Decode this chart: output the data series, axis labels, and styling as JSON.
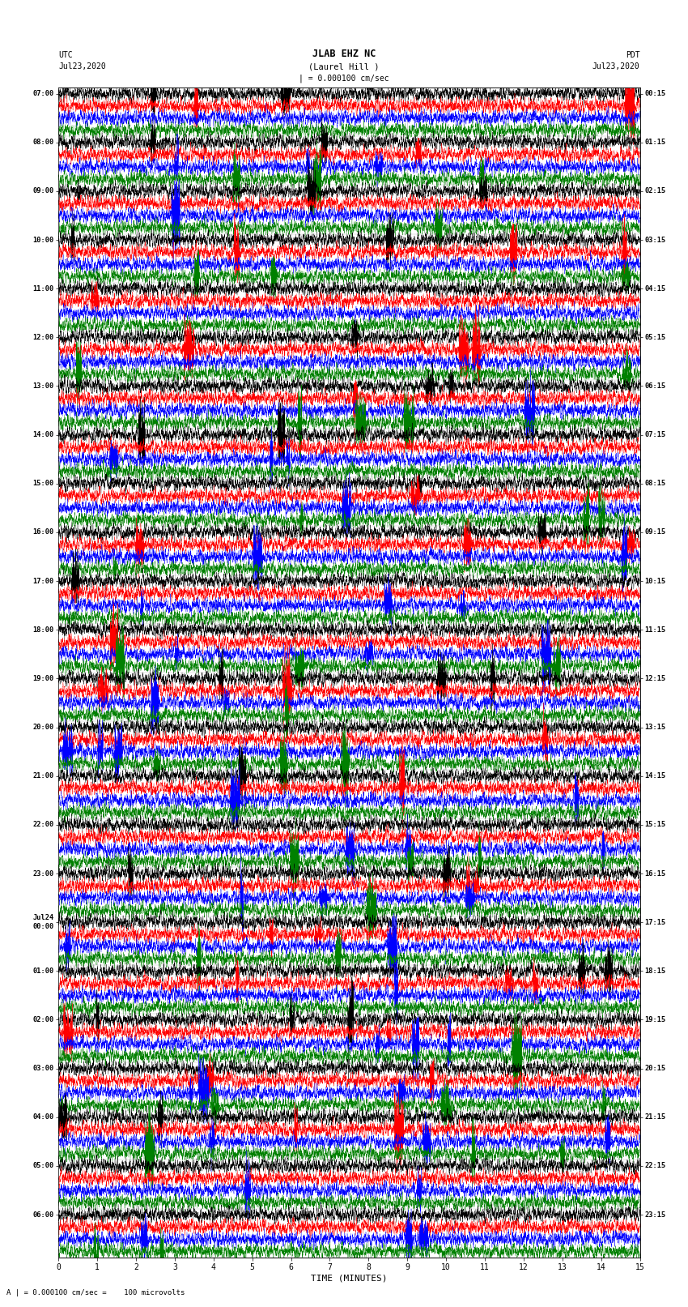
{
  "title_line1": "JLAB EHZ NC",
  "title_line2": "(Laurel Hill )",
  "scale_label": "| = 0.000100 cm/sec",
  "bottom_label": "A | = 0.000100 cm/sec =    100 microvolts",
  "xlabel": "TIME (MINUTES)",
  "left_header_line1": "UTC",
  "left_header_line2": "Jul23,2020",
  "right_header_line1": "PDT",
  "right_header_line2": "Jul23,2020",
  "left_hour_labels": [
    "07:00",
    "08:00",
    "09:00",
    "10:00",
    "11:00",
    "12:00",
    "13:00",
    "14:00",
    "15:00",
    "16:00",
    "17:00",
    "18:00",
    "19:00",
    "20:00",
    "21:00",
    "22:00",
    "23:00",
    "Jul24\n00:00",
    "01:00",
    "02:00",
    "03:00",
    "04:00",
    "05:00",
    "06:00"
  ],
  "right_hour_labels": [
    "00:15",
    "01:15",
    "02:15",
    "03:15",
    "04:15",
    "05:15",
    "06:15",
    "07:15",
    "08:15",
    "09:15",
    "10:15",
    "11:15",
    "12:15",
    "13:15",
    "14:15",
    "15:15",
    "16:15",
    "17:15",
    "18:15",
    "19:15",
    "20:15",
    "21:15",
    "22:15",
    "23:15"
  ],
  "trace_colors": [
    "black",
    "red",
    "blue",
    "green"
  ],
  "num_hours": 24,
  "traces_per_hour": 4,
  "x_ticks": [
    0,
    1,
    2,
    3,
    4,
    5,
    6,
    7,
    8,
    9,
    10,
    11,
    12,
    13,
    14,
    15
  ],
  "fig_width": 8.5,
  "fig_height": 16.13,
  "dpi": 100,
  "bg_color": "white",
  "xmin": 0,
  "xmax": 15,
  "random_seed": 42
}
